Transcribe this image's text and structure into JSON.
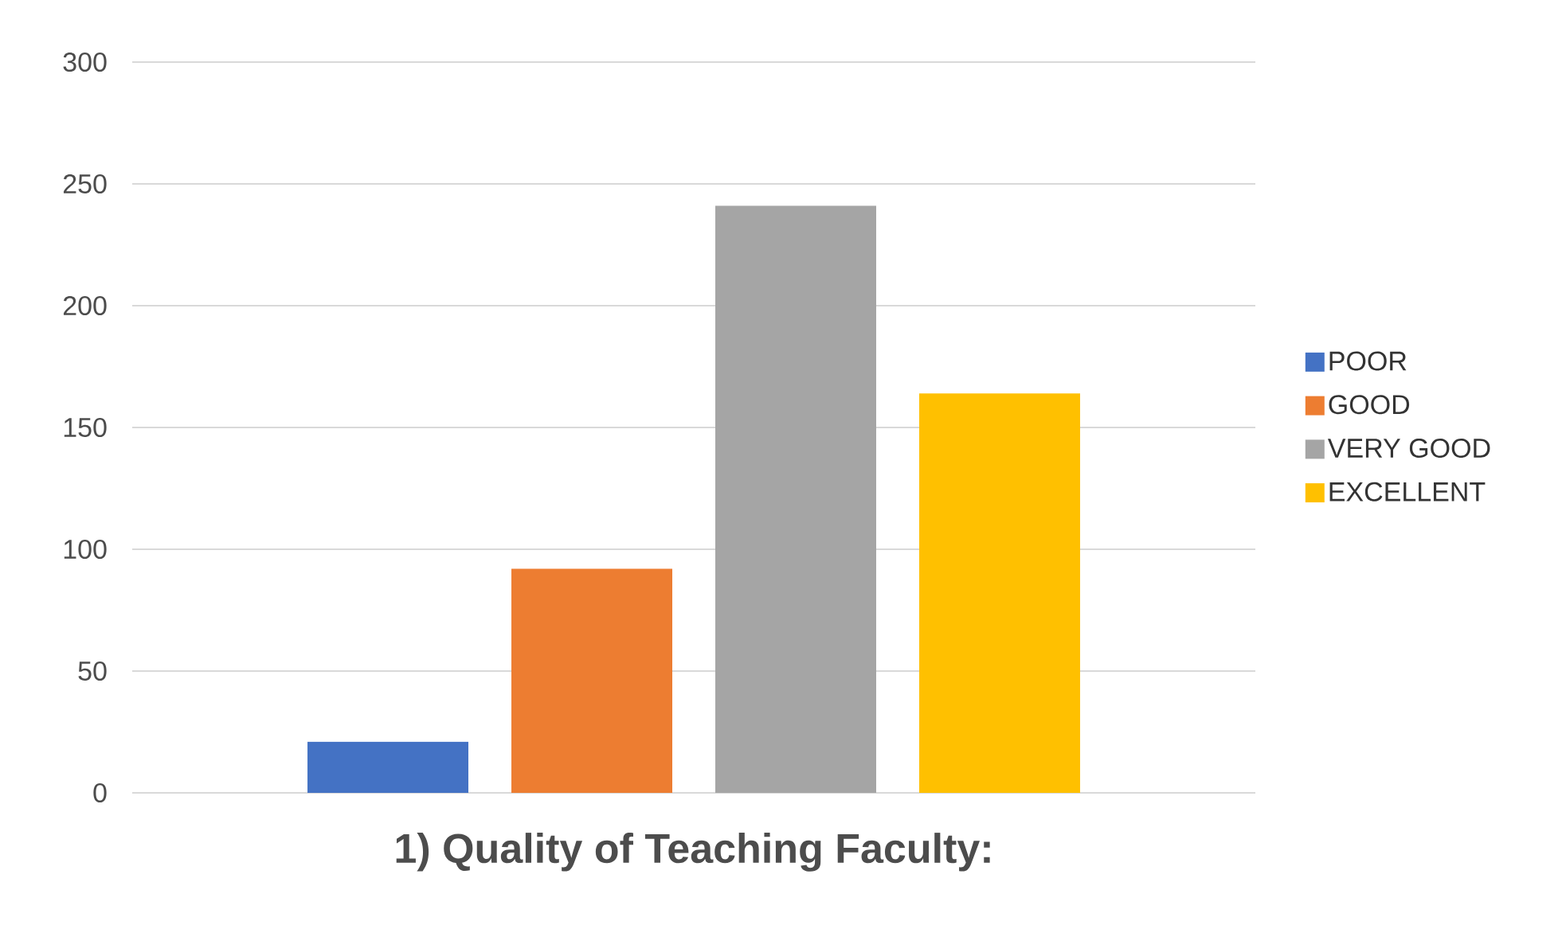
{
  "chart_data": {
    "type": "bar",
    "title": "1) Quality of Teaching Faculty:",
    "categories": [
      null
    ],
    "series": [
      {
        "name": "POOR",
        "color": "#4472c4",
        "values": [
          21
        ]
      },
      {
        "name": "GOOD",
        "color": "#ed7d31",
        "values": [
          92
        ]
      },
      {
        "name": "VERY GOOD",
        "color": "#a5a5a5",
        "values": [
          241
        ]
      },
      {
        "name": "EXCELLENT",
        "color": "#ffc000",
        "values": [
          164
        ]
      }
    ],
    "ylim": [
      0,
      300
    ],
    "yticks": [
      0,
      50,
      100,
      150,
      200,
      250,
      300
    ],
    "grid": "y",
    "legend": "right"
  }
}
